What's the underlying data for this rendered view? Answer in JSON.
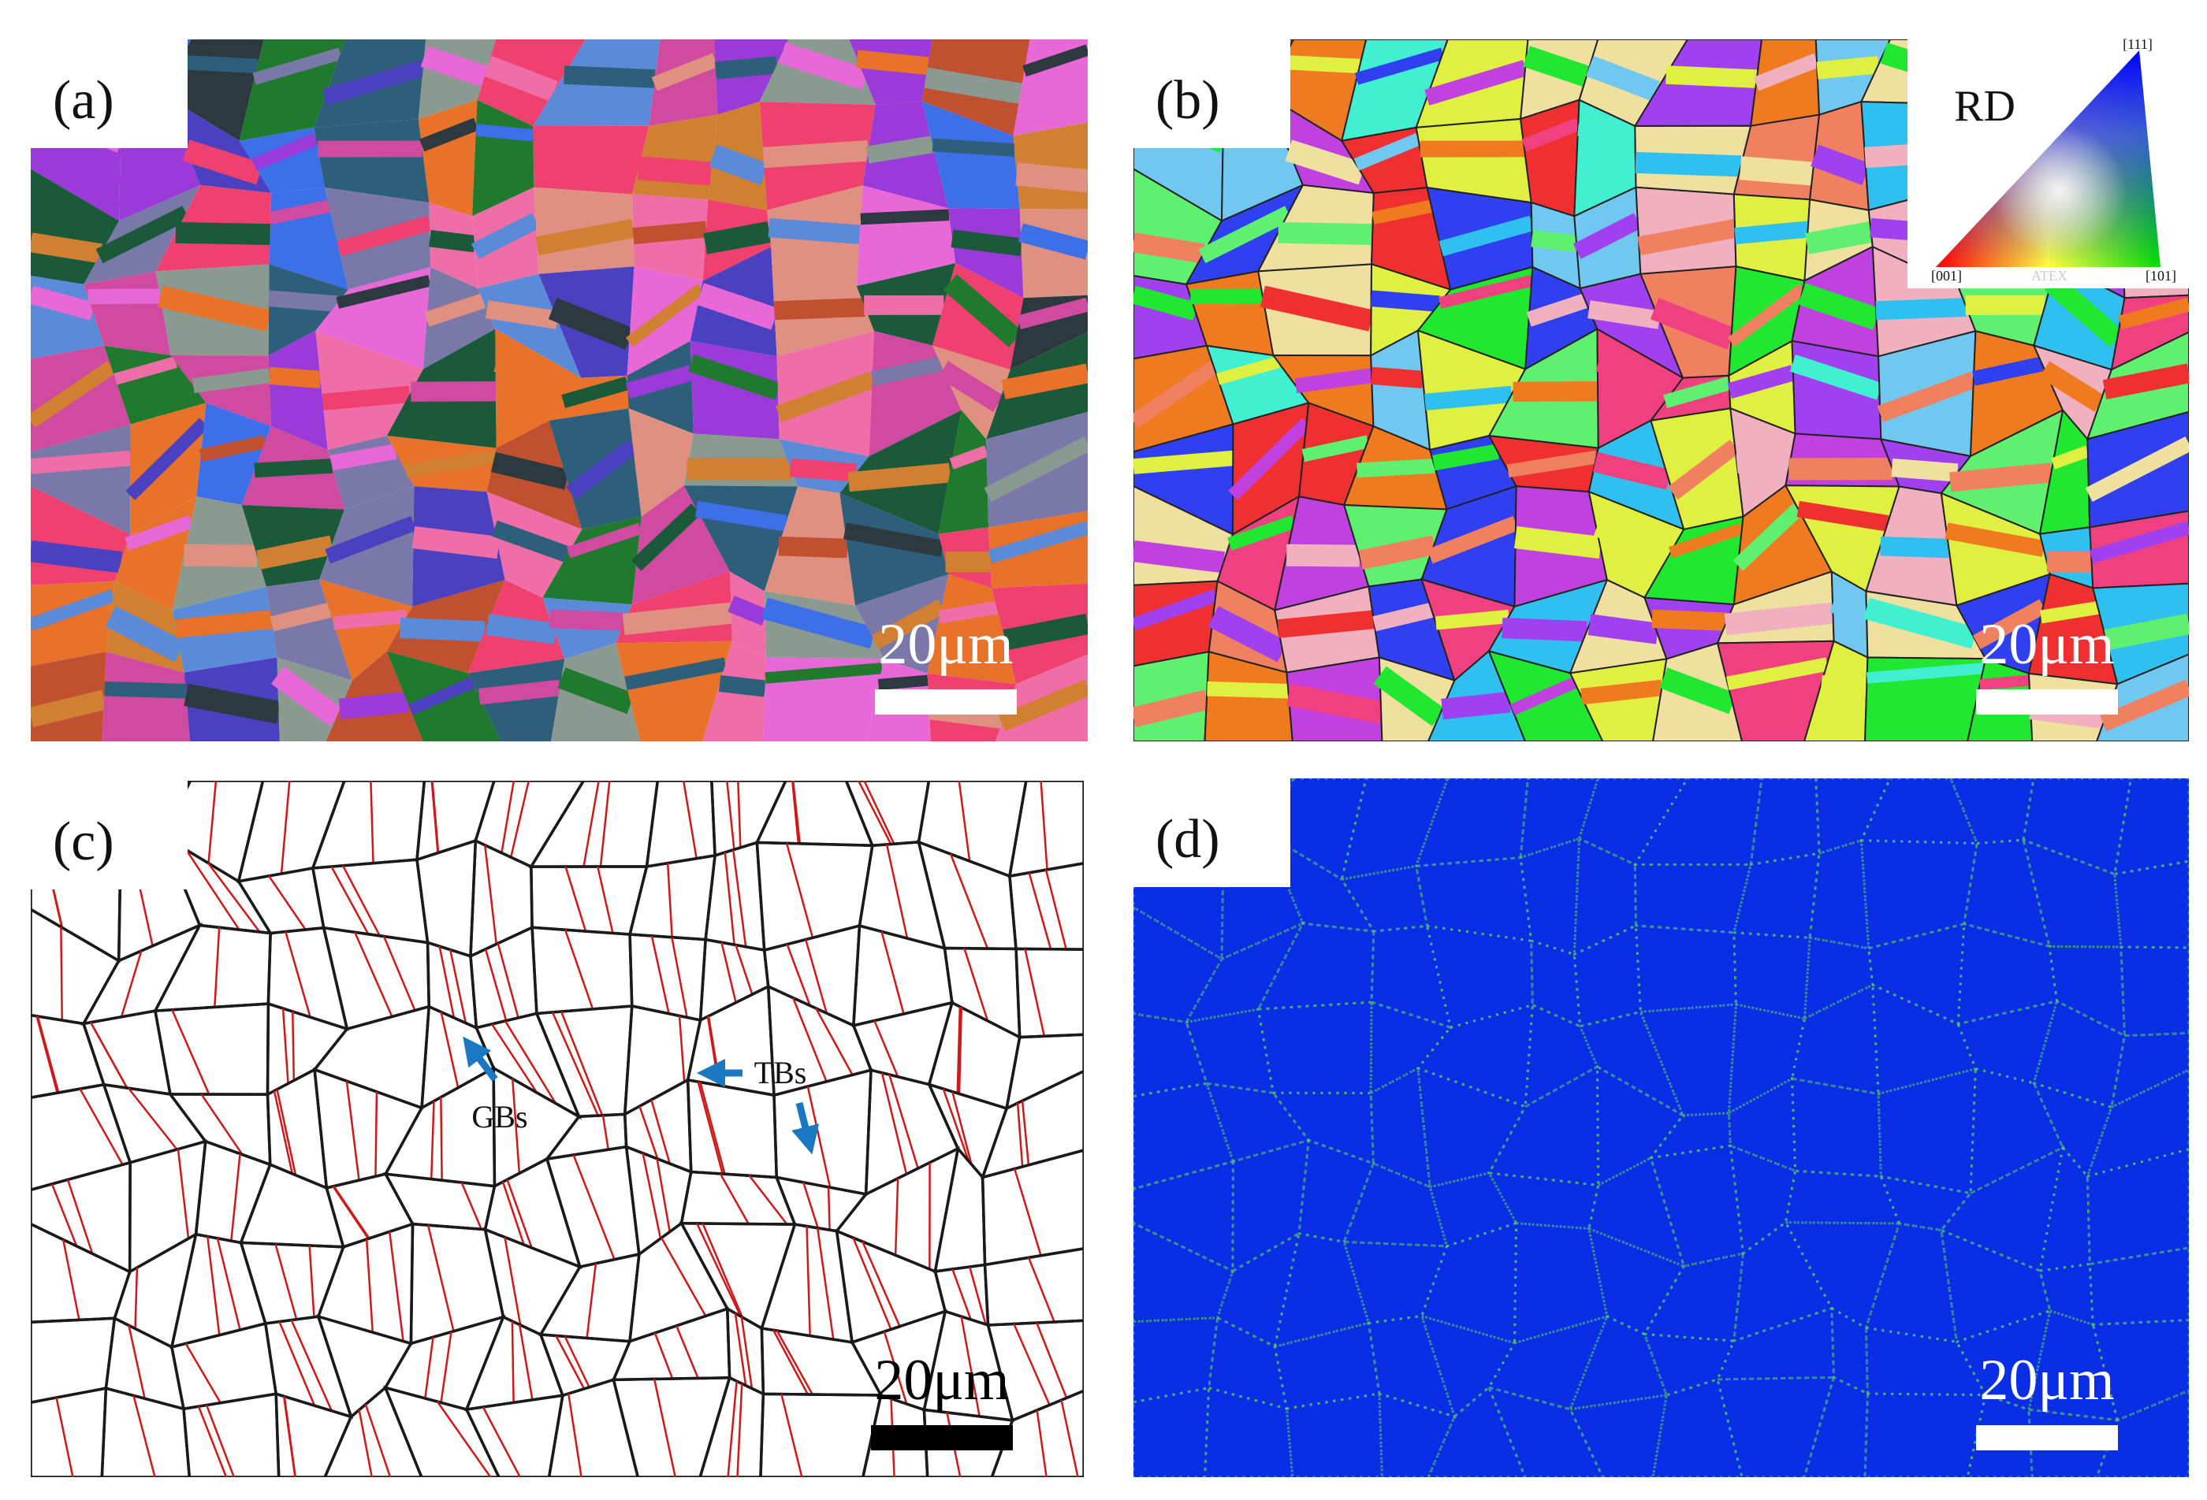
{
  "panels": [
    {
      "label": "(a)",
      "scale_bar": "20μm"
    },
    {
      "label": "(b)",
      "scale_bar": "20μm",
      "legend": {
        "title": "RD",
        "corners": [
          "[111]",
          "[001]",
          "[101]"
        ],
        "watermark": "ATEX"
      }
    },
    {
      "label": "(c)",
      "scale_bar": "20μm",
      "annotations": [
        "GBs",
        "TBs"
      ]
    },
    {
      "label": "(d)",
      "scale_bar": "20μm"
    }
  ]
}
